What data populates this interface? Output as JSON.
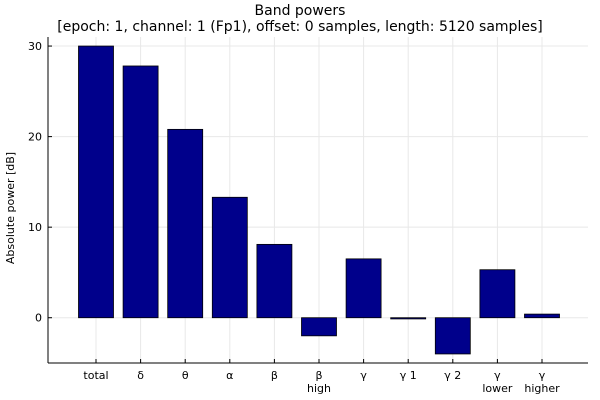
{
  "chart_data": {
    "type": "bar",
    "title_line1": "Band powers",
    "title_line2": "[epoch: 1, channel: 1 (Fp1), offset: 0 samples, length: 5120 samples]",
    "ylabel": "Absolute power [dB]",
    "categories": [
      [
        "total"
      ],
      [
        "δ"
      ],
      [
        "θ"
      ],
      [
        "α"
      ],
      [
        "β"
      ],
      [
        "β",
        "high"
      ],
      [
        "γ"
      ],
      [
        "γ 1"
      ],
      [
        "γ 2"
      ],
      [
        "γ",
        "lower"
      ],
      [
        "γ",
        "higher"
      ]
    ],
    "values": [
      30.0,
      27.8,
      20.8,
      13.3,
      8.1,
      -2.0,
      6.5,
      -0.1,
      -4.0,
      5.3,
      0.4
    ],
    "ylim": [
      -5,
      31
    ],
    "yticks": [
      0,
      10,
      20,
      30
    ],
    "grid": true,
    "bar_color": "#00008B",
    "grid_color": "#e8e8e8"
  }
}
